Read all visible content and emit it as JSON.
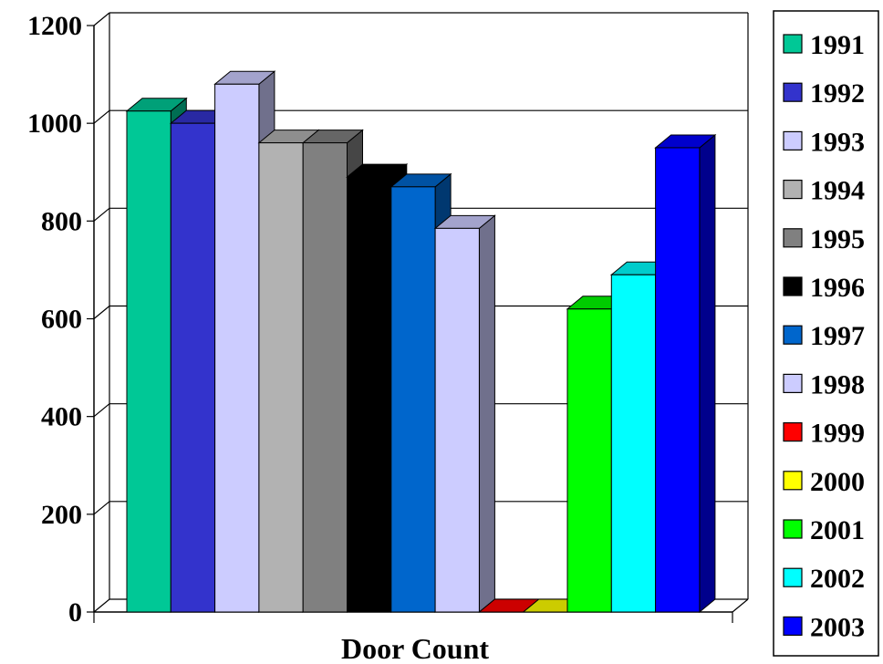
{
  "chart_data": {
    "type": "bar",
    "title": "",
    "xlabel": "Door Count",
    "ylabel": "",
    "ylim": [
      0,
      1200
    ],
    "yticks": [
      0,
      200,
      400,
      600,
      800,
      1000,
      1200
    ],
    "grid": true,
    "legend_position": "right",
    "series": [
      {
        "name": "1991",
        "value": 1025,
        "color": "#00c896"
      },
      {
        "name": "1992",
        "value": 1000,
        "color": "#3333cc"
      },
      {
        "name": "1993",
        "value": 1080,
        "color": "#ccccff"
      },
      {
        "name": "1994",
        "value": 960,
        "color": "#b2b2b2"
      },
      {
        "name": "1995",
        "value": 960,
        "color": "#808080"
      },
      {
        "name": "1996",
        "value": 890,
        "color": "#000000"
      },
      {
        "name": "1997",
        "value": 870,
        "color": "#0066cc"
      },
      {
        "name": "1998",
        "value": 785,
        "color": "#ccccff"
      },
      {
        "name": "1999",
        "value": 0,
        "color": "#ff0000"
      },
      {
        "name": "2000",
        "value": 0,
        "color": "#ffff00"
      },
      {
        "name": "2001",
        "value": 620,
        "color": "#00ff00"
      },
      {
        "name": "2002",
        "value": 690,
        "color": "#00ffff"
      },
      {
        "name": "2003",
        "value": 950,
        "color": "#0000ff"
      }
    ]
  }
}
